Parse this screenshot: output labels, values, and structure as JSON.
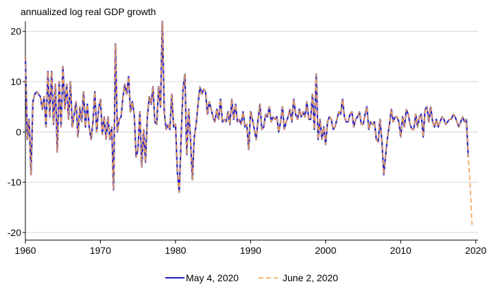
{
  "chart_data": {
    "type": "line",
    "title": "",
    "ylabel": "annualized log real GDP growth",
    "xlabel": "",
    "xlim": [
      1960,
      2020.3
    ],
    "ylim": [
      -21.5,
      22
    ],
    "x_ticks": [
      1960,
      1970,
      1980,
      1990,
      2000,
      2010,
      2020
    ],
    "y_ticks": [
      -20,
      -10,
      0,
      10,
      20
    ],
    "y_tick_labels": [
      "-20",
      "-10",
      "0",
      "10",
      "20"
    ],
    "grid": "horizontal",
    "legend_position": "bottom-center",
    "frequency": "quarterly",
    "start": 1960.0,
    "series": [
      {
        "name": "May 4, 2020",
        "color": "#1f1fcc",
        "style": "solid",
        "values": [
          15.0,
          -1.5,
          2.5,
          -8.5,
          6.0,
          7.5,
          8.0,
          7.5,
          7.0,
          4.5,
          7.0,
          1.0,
          12.0,
          3.0,
          12.0,
          1.5,
          9.5,
          -4.0,
          10.0,
          1.0,
          13.0,
          4.5,
          9.5,
          2.5,
          10.0,
          1.0,
          3.5,
          6.0,
          -1.0,
          5.0,
          2.0,
          8.0,
          1.0,
          5.5,
          1.0,
          -1.5,
          2.0,
          8.0,
          0.0,
          4.5,
          6.5,
          -0.5,
          3.0,
          -1.5,
          3.0,
          -1.5,
          1.0,
          -11.5,
          17.5,
          0.0,
          2.5,
          3.0,
          7.0,
          9.5,
          7.5,
          11.0,
          4.0,
          6.0,
          3.5,
          -5.0,
          -3.5,
          4.0,
          -7.0,
          0.5,
          -6.0,
          3.0,
          7.0,
          5.5,
          9.0,
          2.0,
          1.5,
          9.0,
          5.0,
          22.0,
          4.0,
          0.5,
          1.5,
          0.5,
          7.5,
          1.0,
          1.5,
          -8.0,
          -12.0,
          -1.0,
          8.5,
          11.5,
          -4.5,
          4.5,
          -1.5,
          -9.5,
          -1.0,
          1.5,
          5.5,
          9.0,
          7.5,
          8.5,
          8.0,
          3.5,
          6.0,
          4.5,
          3.0,
          2.0,
          4.5,
          2.5,
          6.5,
          2.0,
          2.5,
          2.0,
          4.0,
          1.5,
          6.5,
          2.5,
          5.5,
          2.0,
          2.5,
          1.5,
          4.0,
          1.0,
          1.5,
          -3.5,
          4.0,
          2.5,
          0.5,
          -1.5,
          2.5,
          5.5,
          0.5,
          1.0,
          3.5,
          3.0,
          5.0,
          2.0,
          3.0,
          2.5,
          3.0,
          0.0,
          2.0,
          5.0,
          0.5,
          2.0,
          3.0,
          4.5,
          2.0,
          6.5,
          3.5,
          2.5,
          4.5,
          3.0,
          4.0,
          3.0,
          6.0,
          2.5,
          2.5,
          7.5,
          0.5,
          11.5,
          -1.5,
          2.5,
          -1.5,
          1.0,
          -2.5,
          2.0,
          3.0,
          2.5,
          0.5,
          1.0,
          2.5,
          4.0,
          3.5,
          6.5,
          3.0,
          2.0,
          2.0,
          3.5,
          4.0,
          1.0,
          2.5,
          3.0,
          4.0,
          1.5,
          1.5,
          3.5,
          5.0,
          0.5,
          2.0,
          1.5,
          2.0,
          -1.5,
          -2.0,
          2.5,
          -2.0,
          -8.5,
          -4.5,
          -1.0,
          1.5,
          4.5,
          2.0,
          3.0,
          3.0,
          2.0,
          -1.0,
          3.0,
          1.0,
          4.5,
          3.5,
          1.5,
          0.5,
          0.5,
          3.5,
          1.0,
          3.0,
          3.5,
          -1.0,
          4.5,
          5.0,
          2.0,
          5.0,
          2.0,
          1.0,
          2.5,
          1.0,
          2.0,
          3.0,
          2.5,
          1.5,
          2.0,
          2.5,
          2.5,
          3.5,
          3.0,
          2.0,
          1.0,
          2.0,
          3.0,
          2.0,
          2.5,
          -5.0
        ]
      },
      {
        "name": "June 2, 2020",
        "color": "#f29e4c",
        "style": "dashed",
        "values": [
          15.0,
          -1.5,
          2.5,
          -8.5,
          6.0,
          7.5,
          8.0,
          7.5,
          7.0,
          4.5,
          7.0,
          1.0,
          12.0,
          3.0,
          12.0,
          1.5,
          9.5,
          -4.0,
          10.0,
          1.0,
          13.0,
          4.5,
          9.5,
          2.5,
          10.0,
          1.0,
          3.5,
          6.0,
          -1.0,
          5.0,
          2.0,
          8.0,
          1.0,
          5.5,
          1.0,
          -1.5,
          2.0,
          8.0,
          0.0,
          4.5,
          6.5,
          -0.5,
          3.0,
          -1.5,
          3.0,
          -1.5,
          1.0,
          -11.5,
          17.5,
          0.0,
          2.5,
          3.0,
          7.0,
          9.5,
          7.5,
          11.0,
          4.0,
          6.0,
          3.5,
          -5.0,
          -3.5,
          4.0,
          -7.0,
          0.5,
          -6.0,
          3.0,
          7.0,
          5.5,
          9.0,
          2.0,
          1.5,
          9.0,
          5.0,
          22.0,
          4.0,
          0.5,
          1.5,
          0.5,
          7.5,
          1.0,
          1.5,
          -8.0,
          -12.0,
          -1.0,
          8.5,
          11.5,
          -4.5,
          4.5,
          -1.5,
          -9.5,
          -1.0,
          1.5,
          5.5,
          9.0,
          7.5,
          8.5,
          8.0,
          3.5,
          6.0,
          4.5,
          3.0,
          2.0,
          4.5,
          2.5,
          6.5,
          2.0,
          2.5,
          2.0,
          4.0,
          1.5,
          6.5,
          2.5,
          5.5,
          2.0,
          2.5,
          1.5,
          4.0,
          1.0,
          1.5,
          -3.5,
          4.0,
          2.5,
          0.5,
          -1.5,
          2.5,
          5.5,
          0.5,
          1.0,
          3.5,
          3.0,
          5.0,
          2.0,
          3.0,
          2.5,
          3.0,
          0.0,
          2.0,
          5.0,
          0.5,
          2.0,
          3.0,
          4.5,
          2.0,
          6.5,
          3.5,
          2.5,
          4.5,
          3.0,
          4.0,
          3.0,
          6.0,
          2.5,
          2.5,
          7.5,
          0.5,
          11.5,
          -1.5,
          2.5,
          -1.5,
          1.0,
          -2.5,
          2.0,
          3.0,
          2.5,
          0.5,
          1.0,
          2.5,
          4.0,
          3.5,
          6.5,
          3.0,
          2.0,
          2.0,
          3.5,
          4.0,
          1.0,
          2.5,
          3.0,
          4.0,
          1.5,
          1.5,
          3.5,
          5.0,
          0.5,
          2.0,
          1.5,
          2.0,
          -1.5,
          -2.0,
          2.5,
          -2.0,
          -8.5,
          -4.5,
          -1.0,
          1.5,
          4.5,
          2.0,
          3.0,
          3.0,
          2.0,
          -1.0,
          3.0,
          1.0,
          4.5,
          3.5,
          1.5,
          0.5,
          0.5,
          3.5,
          1.0,
          3.0,
          3.5,
          -1.0,
          4.5,
          5.0,
          2.0,
          5.0,
          2.0,
          1.0,
          2.5,
          1.0,
          2.0,
          3.0,
          2.5,
          1.5,
          2.0,
          2.5,
          2.5,
          3.5,
          3.0,
          2.0,
          1.0,
          2.0,
          3.0,
          2.0,
          2.5,
          -5.0,
          -10.5,
          -18.5
        ]
      }
    ]
  }
}
